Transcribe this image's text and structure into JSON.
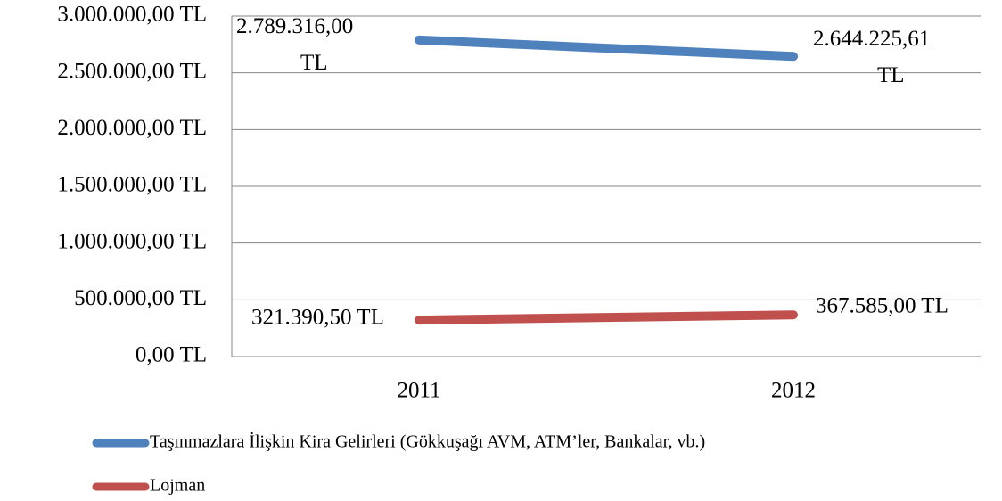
{
  "chart_data": {
    "type": "line",
    "categories": [
      "2011",
      "2012"
    ],
    "series": [
      {
        "name": "Taşınmazlara İlişkin Kira Gelirleri (Gökkuşağı AVM, ATM’ler, Bankalar, vb.)",
        "color": "#4f81bd",
        "values": [
          2789316,
          2644225.61
        ],
        "value_labels": [
          "2.789.316,00 TL",
          "2.644.225,61 TL"
        ]
      },
      {
        "name": "Lojman",
        "color": "#c0504d",
        "values": [
          321390.5,
          367585
        ],
        "value_labels": [
          "321.390,50 TL",
          "367.585,00 TL"
        ]
      }
    ],
    "ylim": [
      0,
      3000000
    ],
    "yticks": [
      {
        "value": 0,
        "label": "0,00 TL"
      },
      {
        "value": 500000,
        "label": "500.000,00 TL"
      },
      {
        "value": 1000000,
        "label": "1.000.000,00 TL"
      },
      {
        "value": 1500000,
        "label": "1.500.000,00 TL"
      },
      {
        "value": 2000000,
        "label": "2.000.000,00 TL"
      },
      {
        "value": 2500000,
        "label": "2.500.000,00 TL"
      },
      {
        "value": 3000000,
        "label": "3.000.000,00 TL"
      }
    ],
    "grid": true
  }
}
